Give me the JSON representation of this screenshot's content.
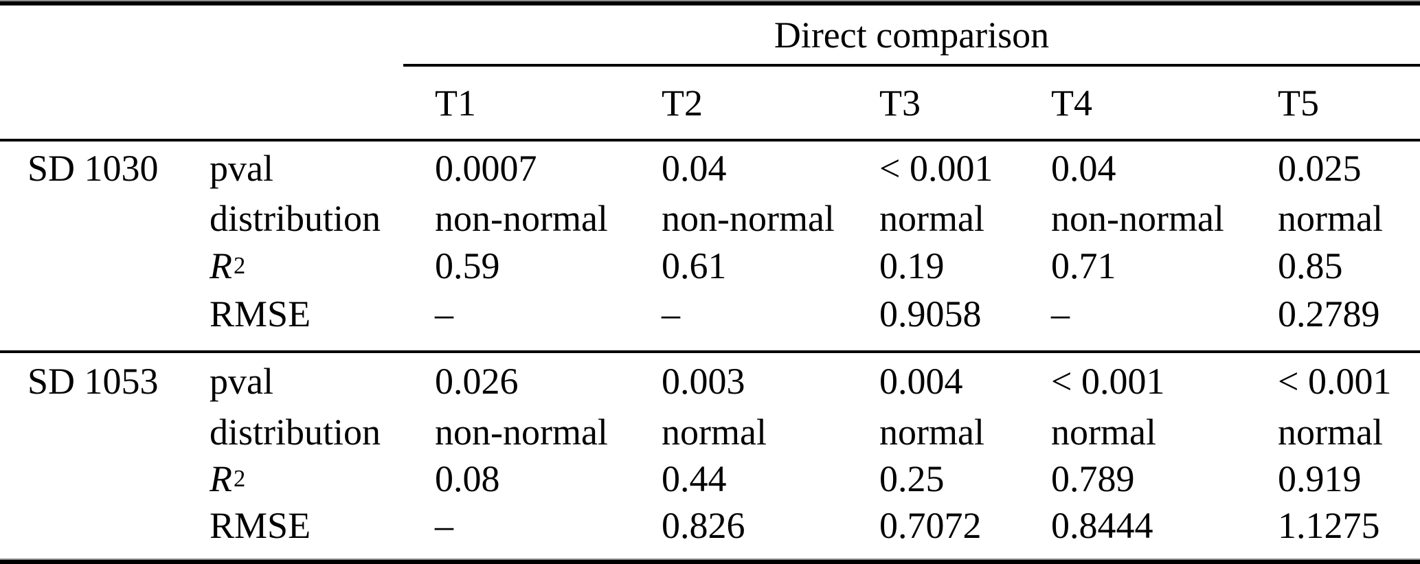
{
  "page": {
    "background_color": "#ffffff",
    "text_color": "#000000",
    "rule_color": "#000000"
  },
  "table": {
    "span_header": "Direct comparison",
    "col_headers": [
      "T1",
      "T2",
      "T3",
      "T4",
      "T5"
    ],
    "metric_labels": {
      "pval": "pval",
      "distribution": "distribution",
      "r2_base": "R",
      "r2_sup": "2",
      "rmse": "RMSE"
    },
    "groups": [
      {
        "name": "SD 1030",
        "pval": [
          "0.0007",
          "0.04",
          "< 0.001",
          "0.04",
          "0.025"
        ],
        "distribution": [
          "non-normal",
          "non-normal",
          "normal",
          "non-normal",
          "normal"
        ],
        "r2": [
          "0.59",
          "0.61",
          "0.19",
          "0.71",
          "0.85"
        ],
        "rmse": [
          "–",
          "–",
          "0.9058",
          "–",
          "0.2789"
        ]
      },
      {
        "name": "SD 1053",
        "pval": [
          "0.026",
          "0.003",
          "0.004",
          "< 0.001",
          "< 0.001"
        ],
        "distribution": [
          "non-normal",
          "normal",
          "normal",
          "normal",
          "normal"
        ],
        "r2": [
          "0.08",
          "0.44",
          "0.25",
          "0.789",
          "0.919"
        ],
        "rmse": [
          "–",
          "0.826",
          "0.7072",
          "0.8444",
          "1.1275"
        ]
      }
    ]
  }
}
